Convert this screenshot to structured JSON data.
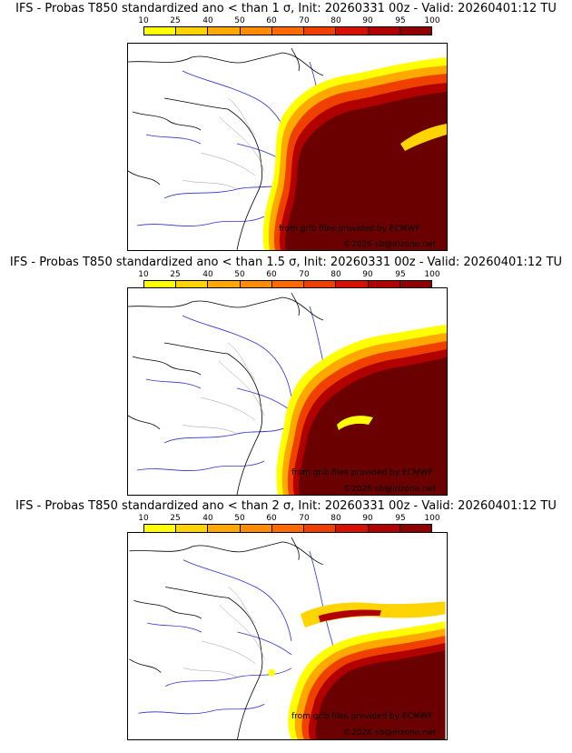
{
  "colorbar": {
    "ticks": [
      "10",
      "25",
      "40",
      "50",
      "60",
      "70",
      "80",
      "90",
      "95",
      "100"
    ],
    "colors": [
      "#ffff00",
      "#ffd400",
      "#ffa800",
      "#ff8c00",
      "#ff6a00",
      "#f04000",
      "#d81000",
      "#b00000",
      "#900000",
      "#6a0000"
    ]
  },
  "credits": {
    "source": "from grib files provided by ECMWF",
    "copyright": "©2026 sb@irizone.net"
  },
  "panels": [
    {
      "title": "IFS - Probas T850  standardized ano < than 1 σ, Init: 20260331 00z - Valid: 20260401:12 TU"
    },
    {
      "title": "IFS - Probas T850  standardized ano < than 1.5 σ, Init: 20260331 00z - Valid: 20260401:12 TU"
    },
    {
      "title": "IFS - Probas T850  standardized ano < than 2 σ, Init: 20260331 00z - Valid: 20260401:12 TU"
    }
  ]
}
